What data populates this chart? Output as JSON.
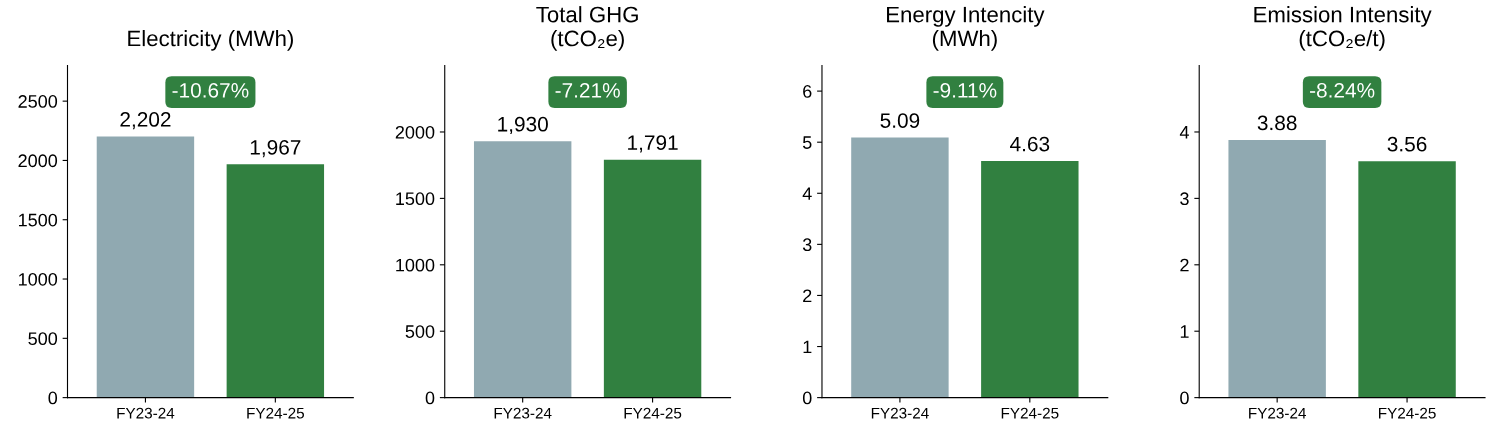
{
  "chart_data": [
    {
      "type": "bar",
      "title": "Electricity (MWh)",
      "categories": [
        "FY23-24",
        "FY24-25"
      ],
      "values": [
        2202,
        1967
      ],
      "colors": [
        "#90a9b1",
        "#318040"
      ],
      "value_labels": [
        "2,202",
        "1,967"
      ],
      "ylim": [
        0,
        2800
      ],
      "yticks": [
        0,
        500,
        1000,
        1500,
        2000,
        2500
      ],
      "annotations": [
        "-10.67%"
      ]
    },
    {
      "type": "bar",
      "title": "Total GHG\n(tCO₂e)",
      "categories": [
        "FY23-24",
        "FY24-25"
      ],
      "values": [
        1930,
        1791
      ],
      "colors": [
        "#90a9b1",
        "#318040"
      ],
      "value_labels": [
        "1,930",
        "1,791"
      ],
      "ylim": [
        0,
        2500
      ],
      "yticks": [
        0,
        500,
        1000,
        1500,
        2000
      ],
      "annotations": [
        "-7.21%"
      ]
    },
    {
      "type": "bar",
      "title": "Energy Intencity\n(MWh)",
      "categories": [
        "FY23-24",
        "FY24-25"
      ],
      "values": [
        5.09,
        4.63
      ],
      "colors": [
        "#90a9b1",
        "#318040"
      ],
      "value_labels": [
        "5.09",
        "4.63"
      ],
      "ylim": [
        0,
        6.5
      ],
      "yticks": [
        0,
        1,
        2,
        3,
        4,
        5,
        6
      ],
      "annotations": [
        "-9.11%"
      ]
    },
    {
      "type": "bar",
      "title": "Emission Intensity\n(tCO₂e/t)",
      "categories": [
        "FY23-24",
        "FY24-25"
      ],
      "values": [
        3.88,
        3.56
      ],
      "colors": [
        "#90a9b1",
        "#318040"
      ],
      "value_labels": [
        "3.88",
        "3.56"
      ],
      "ylim": [
        0,
        5
      ],
      "yticks": [
        0,
        1,
        2,
        3,
        4
      ],
      "annotations": [
        "-8.24%"
      ]
    }
  ]
}
